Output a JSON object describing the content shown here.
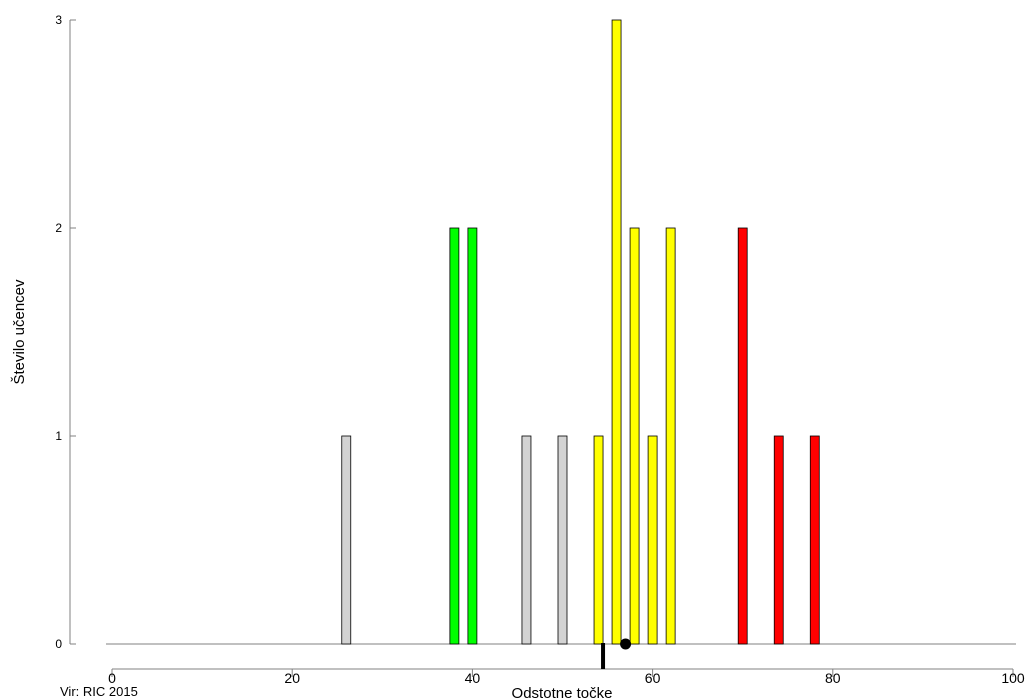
{
  "chart_data": {
    "type": "bar",
    "title": "",
    "xlabel": "Odstotne točke",
    "ylabel": "Število učencev",
    "xlim": [
      0,
      100
    ],
    "ylim": [
      0,
      3
    ],
    "x_ticks": [
      "0",
      "20",
      "40",
      "60",
      "80",
      "100"
    ],
    "y_ticks": [
      "0",
      "1",
      "2",
      "3"
    ],
    "bars": [
      {
        "x": 26,
        "value": 1,
        "color": "#d3d3d3"
      },
      {
        "x": 38,
        "value": 2,
        "color": "#00ff00"
      },
      {
        "x": 40,
        "value": 2,
        "color": "#00ff00"
      },
      {
        "x": 46,
        "value": 1,
        "color": "#d3d3d3"
      },
      {
        "x": 50,
        "value": 1,
        "color": "#d3d3d3"
      },
      {
        "x": 54,
        "value": 1,
        "color": "#ffff00"
      },
      {
        "x": 56,
        "value": 3,
        "color": "#ffff00"
      },
      {
        "x": 58,
        "value": 2,
        "color": "#ffff00"
      },
      {
        "x": 60,
        "value": 1,
        "color": "#ffff00"
      },
      {
        "x": 62,
        "value": 2,
        "color": "#ffff00"
      },
      {
        "x": 70,
        "value": 2,
        "color": "#ff0000"
      },
      {
        "x": 74,
        "value": 1,
        "color": "#ff0000"
      },
      {
        "x": 78,
        "value": 1,
        "color": "#ff0000"
      }
    ],
    "marker_line_x": 54.5,
    "marker_dot_x": 57,
    "grid": false,
    "legend": "none"
  },
  "source": "Vir: RIC 2015"
}
